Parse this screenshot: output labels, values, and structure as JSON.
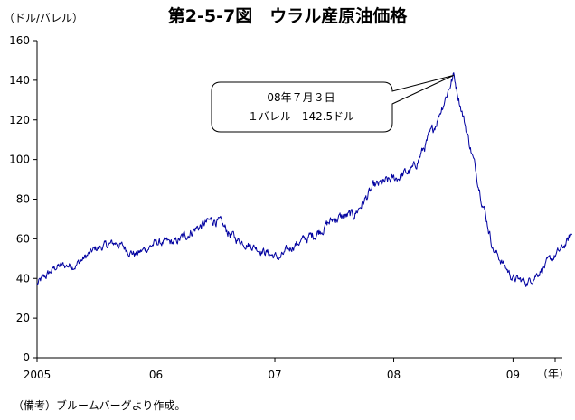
{
  "chart_data": {
    "type": "line",
    "title": "第2-5-7図　ウラル産原油価格",
    "ylabel": "（ドル/バレル）",
    "xlabel": "（年）",
    "ylim": [
      0,
      160
    ],
    "yticks": [
      0,
      20,
      40,
      60,
      80,
      100,
      120,
      140,
      160
    ],
    "xticks": [
      {
        "label": "2005",
        "x": "2005-01-01"
      },
      {
        "label": "06",
        "x": "2006-01-01"
      },
      {
        "label": "07",
        "x": "2007-01-01"
      },
      {
        "label": "08",
        "x": "2008-01-01"
      },
      {
        "label": "09",
        "x": "2009-01-01"
      }
    ],
    "grid": false,
    "legend": "none",
    "line_color": "#0000a0",
    "series": [
      {
        "x": [
          "2005-01-01",
          "2005-03-01",
          "2005-05-01",
          "2005-07-01",
          "2005-09-01",
          "2005-11-01",
          "2006-01-01",
          "2006-03-01",
          "2006-05-01",
          "2006-07-01",
          "2006-09-01",
          "2006-11-01",
          "2007-01-15",
          "2007-03-01",
          "2007-05-01",
          "2007-07-01",
          "2007-09-01",
          "2007-11-01",
          "2008-01-01",
          "2008-03-01",
          "2008-05-01",
          "2008-07-03",
          "2008-09-01",
          "2008-11-01",
          "2009-01-01",
          "2009-02-15",
          "2009-04-01",
          "2009-06-01",
          "2009-07-01"
        ],
        "values": [
          37,
          46,
          47,
          55,
          58,
          52,
          58,
          58,
          65,
          70,
          60,
          56,
          50,
          57,
          62,
          70,
          72,
          86,
          90,
          95,
          115,
          142.5,
          100,
          55,
          40,
          38,
          45,
          55,
          62
        ]
      }
    ],
    "annotations": [
      {
        "text": [
          "08年７月３日",
          "１バレル　142.5ドル"
        ],
        "x": "2008-07-03",
        "y": 142.5
      }
    ]
  },
  "source_note": "（備考）ブルームバーグより作成。"
}
